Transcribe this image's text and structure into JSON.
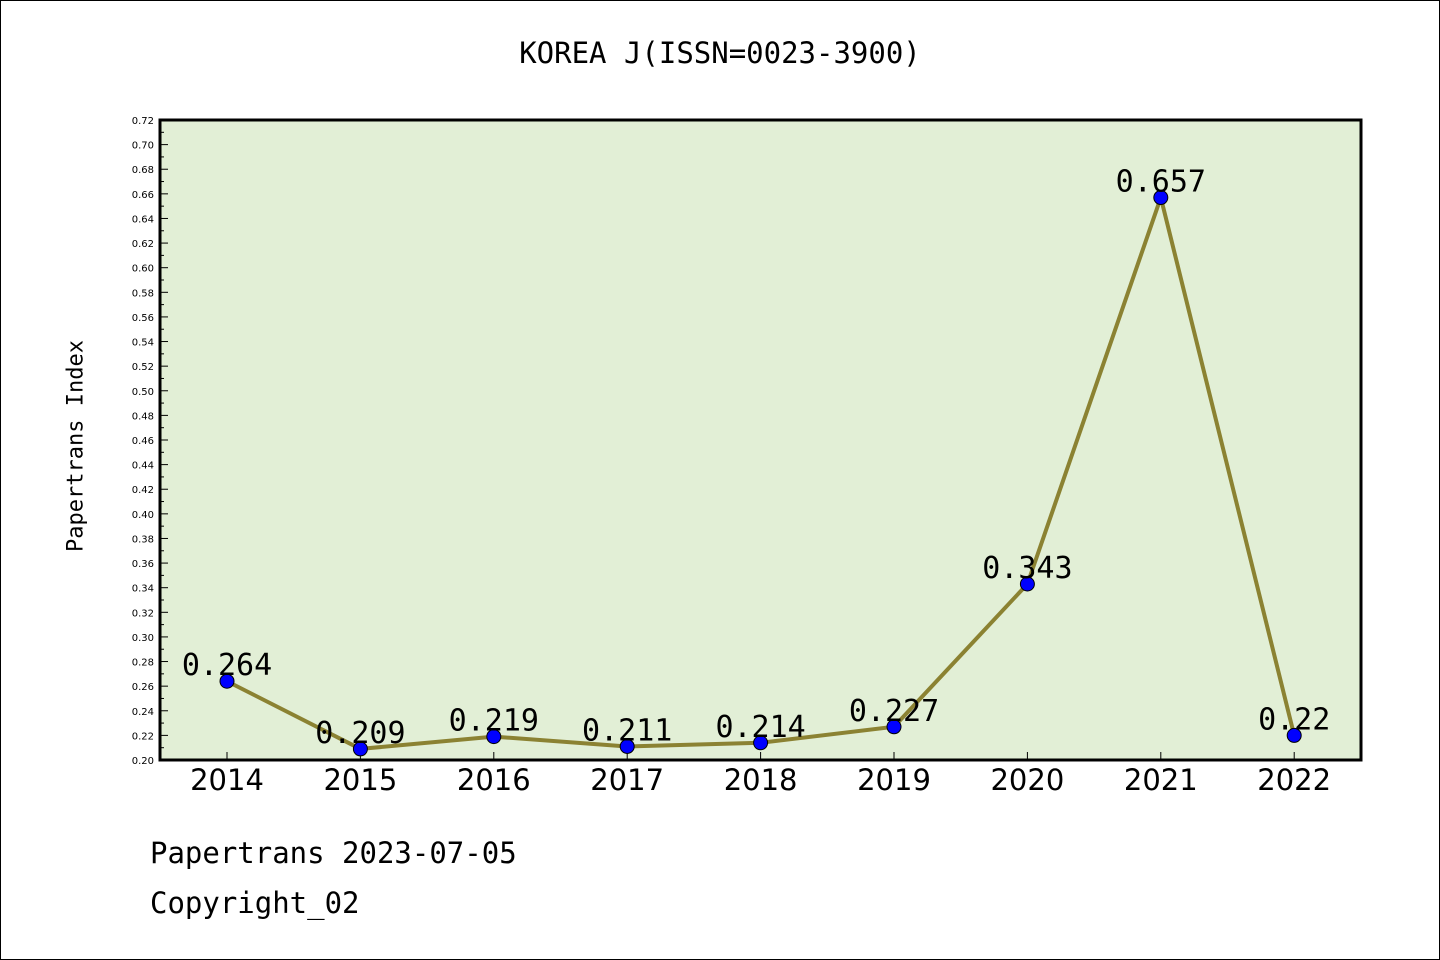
{
  "chart_data": {
    "type": "line",
    "title": "KOREA J(ISSN=0023-3900)",
    "xlabel": "",
    "ylabel": "Papertrans Index",
    "categories": [
      "2014",
      "2015",
      "2016",
      "2017",
      "2018",
      "2019",
      "2020",
      "2021",
      "2022"
    ],
    "values": [
      0.264,
      0.209,
      0.219,
      0.211,
      0.214,
      0.227,
      0.343,
      0.657,
      0.22
    ],
    "data_labels": [
      "0.264",
      "0.209",
      "0.219",
      "0.211",
      "0.214",
      "0.227",
      "0.343",
      "0.657",
      "0.22"
    ],
    "ylim": [
      0.2,
      0.72
    ],
    "y_ticks": [
      "0.20",
      "0.22",
      "0.24",
      "0.26",
      "0.28",
      "0.30",
      "0.32",
      "0.34",
      "0.36",
      "0.38",
      "0.40",
      "0.42",
      "0.44",
      "0.46",
      "0.48",
      "0.50",
      "0.52",
      "0.54",
      "0.56",
      "0.58",
      "0.60",
      "0.62",
      "0.64",
      "0.66",
      "0.68",
      "0.70",
      "0.72"
    ],
    "grid": false,
    "legend": "none",
    "colors": {
      "plot_background": "#e2efd6",
      "line": "#8b8232",
      "marker": "#0000ff"
    }
  },
  "footer": {
    "date_line": "Papertrans 2023-07-05",
    "copyright": "Copyright_02"
  }
}
